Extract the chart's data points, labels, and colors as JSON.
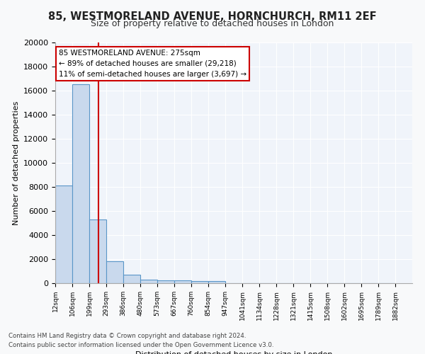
{
  "title1": "85, WESTMORELAND AVENUE, HORNCHURCH, RM11 2EF",
  "title2": "Size of property relative to detached houses in London",
  "xlabel": "Distribution of detached houses by size in London",
  "ylabel": "Number of detached properties",
  "bin_labels": [
    "12sqm",
    "106sqm",
    "199sqm",
    "293sqm",
    "386sqm",
    "480sqm",
    "573sqm",
    "667sqm",
    "760sqm",
    "854sqm",
    "947sqm",
    "1041sqm",
    "1134sqm",
    "1228sqm",
    "1321sqm",
    "1415sqm",
    "1508sqm",
    "1602sqm",
    "1695sqm",
    "1789sqm",
    "1882sqm"
  ],
  "bar_values": [
    8100,
    16500,
    5300,
    1850,
    700,
    320,
    240,
    210,
    190,
    160,
    0,
    0,
    0,
    0,
    0,
    0,
    0,
    0,
    0,
    0
  ],
  "bar_color": "#c9d9ed",
  "bar_edge_color": "#5a96c8",
  "vline_x": 2.55,
  "vline_color": "#cc0000",
  "annotation_title": "85 WESTMORELAND AVENUE: 275sqm",
  "annotation_line2": "← 89% of detached houses are smaller (29,218)",
  "annotation_line3": "11% of semi-detached houses are larger (3,697) →",
  "annotation_box_color": "#ffffff",
  "annotation_box_edge": "#cc0000",
  "ylim": [
    0,
    20000
  ],
  "yticks": [
    0,
    2000,
    4000,
    6000,
    8000,
    10000,
    12000,
    14000,
    16000,
    18000,
    20000
  ],
  "footer1": "Contains HM Land Registry data © Crown copyright and database right 2024.",
  "footer2": "Contains public sector information licensed under the Open Government Licence v3.0.",
  "bg_color": "#f0f4fa",
  "fig_bg_color": "#f8f9fa"
}
